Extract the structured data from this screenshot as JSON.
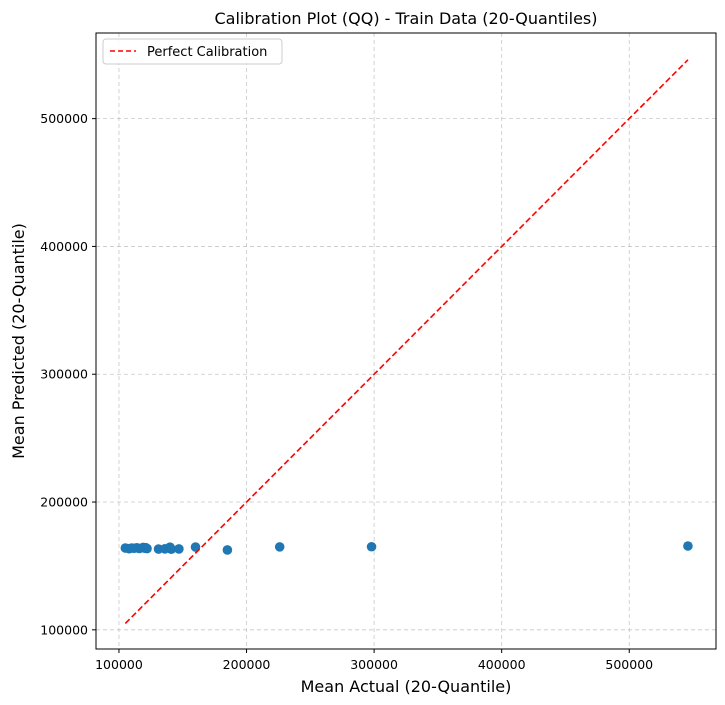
{
  "chart_data": {
    "type": "scatter",
    "title": "Calibration Plot (QQ) - Train Data (20-Quantiles)",
    "xlabel": "Mean Actual (20-Quantile)",
    "ylabel": "Mean Predicted (20-Quantile)",
    "xlim": [
      82000,
      568000
    ],
    "ylim": [
      85000,
      567000
    ],
    "xticks": [
      100000,
      200000,
      300000,
      400000,
      500000
    ],
    "yticks": [
      100000,
      200000,
      300000,
      400000,
      500000
    ],
    "xtick_labels": [
      "100000",
      "200000",
      "300000",
      "400000",
      "500000"
    ],
    "ytick_labels": [
      "100000",
      "200000",
      "300000",
      "400000",
      "500000"
    ],
    "grid": true,
    "legend_position": "top-left",
    "series": [
      {
        "name": "",
        "kind": "scatter",
        "color": "#1f77b4",
        "points": [
          {
            "x": 105000,
            "y": 164000
          },
          {
            "x": 108000,
            "y": 163500
          },
          {
            "x": 110000,
            "y": 164000
          },
          {
            "x": 112000,
            "y": 163800
          },
          {
            "x": 114000,
            "y": 164200
          },
          {
            "x": 116000,
            "y": 163700
          },
          {
            "x": 119000,
            "y": 164500
          },
          {
            "x": 120000,
            "y": 163900
          },
          {
            "x": 121000,
            "y": 164300
          },
          {
            "x": 122000,
            "y": 163600
          },
          {
            "x": 131000,
            "y": 163200
          },
          {
            "x": 136000,
            "y": 163400
          },
          {
            "x": 140000,
            "y": 164700
          },
          {
            "x": 141000,
            "y": 163100
          },
          {
            "x": 147000,
            "y": 163300
          },
          {
            "x": 160000,
            "y": 164800
          },
          {
            "x": 185000,
            "y": 162500
          },
          {
            "x": 226000,
            "y": 164900
          },
          {
            "x": 298000,
            "y": 165000
          },
          {
            "x": 546000,
            "y": 165600
          }
        ]
      },
      {
        "name": "Perfect Calibration",
        "kind": "line",
        "style": "dashed",
        "color": "#ff0000",
        "points": [
          {
            "x": 105000,
            "y": 105000
          },
          {
            "x": 546000,
            "y": 546000
          }
        ]
      }
    ]
  }
}
